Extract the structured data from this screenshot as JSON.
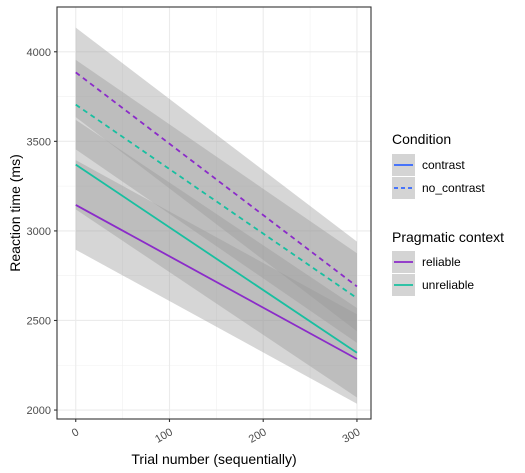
{
  "chart_data": {
    "type": "line",
    "xlabel": "Trial number (sequentially)",
    "ylabel": "Reaction time (ms)",
    "xlim": [
      -20,
      315
    ],
    "ylim": [
      1950,
      4250
    ],
    "x_ticks": [
      0,
      100,
      200,
      300
    ],
    "y_ticks": [
      2000,
      2500,
      3000,
      3500,
      4000
    ],
    "grid": true,
    "series": [
      {
        "condition": "contrast",
        "context": "reliable",
        "color": "#8B2BC9",
        "dash": "solid",
        "x": [
          0,
          300
        ],
        "y": [
          3145,
          2285
        ],
        "ci_lower": [
          2895,
          2035
        ],
        "ci_upper": [
          3395,
          2535
        ]
      },
      {
        "condition": "contrast",
        "context": "unreliable",
        "color": "#18BFA0",
        "dash": "solid",
        "x": [
          0,
          300
        ],
        "y": [
          3370,
          2320
        ],
        "ci_lower": [
          3120,
          2070
        ],
        "ci_upper": [
          3620,
          2570
        ]
      },
      {
        "condition": "no_contrast",
        "context": "reliable",
        "color": "#8B2BC9",
        "dash": "dashed",
        "x": [
          0,
          300
        ],
        "y": [
          3885,
          2690
        ],
        "ci_lower": [
          3635,
          2440
        ],
        "ci_upper": [
          4135,
          2940
        ]
      },
      {
        "condition": "no_contrast",
        "context": "unreliable",
        "color": "#18BFA0",
        "dash": "dashed",
        "x": [
          0,
          300
        ],
        "y": [
          3705,
          2625
        ],
        "ci_lower": [
          3455,
          2375
        ],
        "ci_upper": [
          3955,
          2875
        ]
      }
    ],
    "legends": [
      {
        "title": "Condition",
        "items": [
          {
            "label": "contrast",
            "color": "#3366FF",
            "dash": "solid"
          },
          {
            "label": "no_contrast",
            "color": "#3366FF",
            "dash": "dashed"
          }
        ]
      },
      {
        "title": "Pragmatic context",
        "items": [
          {
            "label": "reliable",
            "color": "#8B2BC9",
            "dash": "solid"
          },
          {
            "label": "unreliable",
            "color": "#18BFA0",
            "dash": "solid"
          }
        ]
      }
    ],
    "legend_position": "right",
    "ribbon_color": "#999999"
  }
}
